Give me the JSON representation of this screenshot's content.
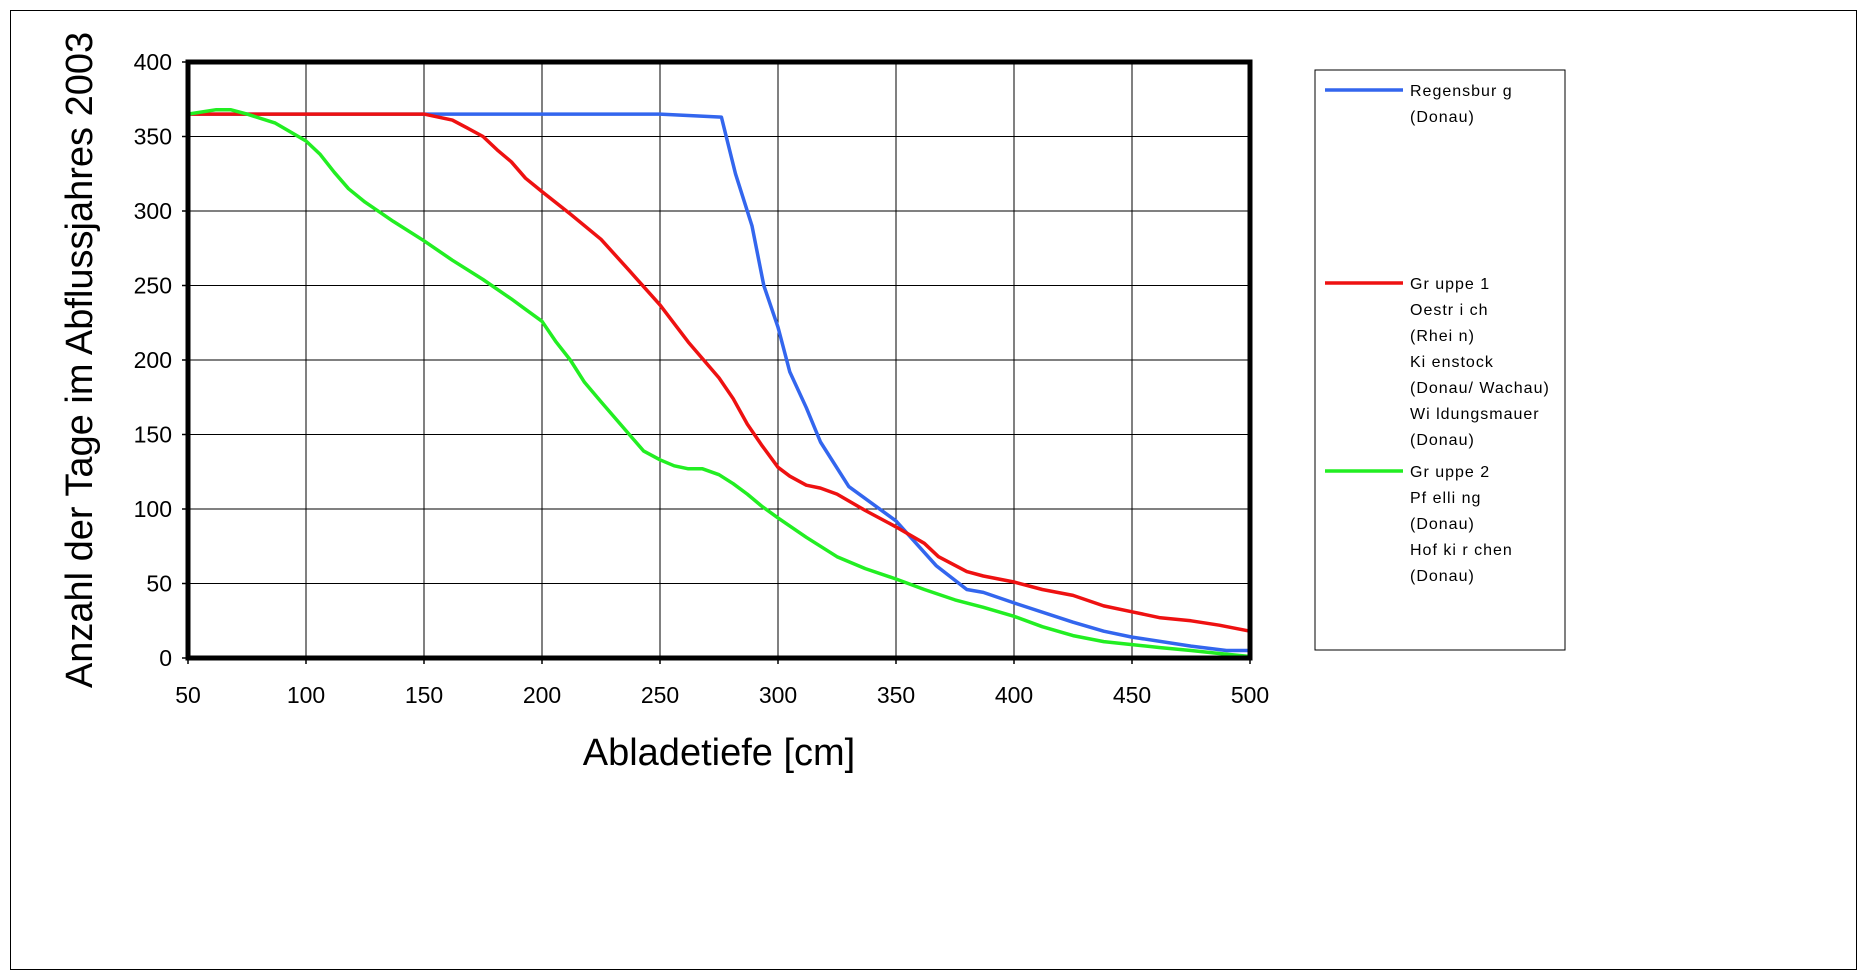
{
  "chart_data": {
    "type": "line",
    "title": "",
    "xlabel": "Abladetiefe [cm]",
    "ylabel": "Anzahl der Tage im Abflussjahres 2003",
    "xlim": [
      50,
      500
    ],
    "ylim": [
      0,
      400
    ],
    "xticks": [
      50,
      100,
      150,
      200,
      250,
      300,
      350,
      400,
      450,
      500
    ],
    "yticks": [
      0,
      50,
      100,
      150,
      200,
      250,
      300,
      350,
      400
    ],
    "grid": true,
    "legend_position": "right",
    "series": [
      {
        "name": "Regensburg (Donau)",
        "legend_lines": [
          "Regensbur g",
          "(Donau)"
        ],
        "color": "#3366ee",
        "x": [
          50,
          100,
          150,
          200,
          250,
          276,
          282,
          289,
          294,
          300,
          305,
          312,
          318,
          330,
          350,
          367,
          380,
          387,
          400,
          425,
          438,
          450,
          475,
          490,
          500
        ],
        "y": [
          365,
          365,
          365,
          365,
          365,
          363,
          325,
          290,
          250,
          222,
          192,
          168,
          145,
          115,
          92,
          62,
          46,
          44,
          37,
          24,
          18,
          14,
          8,
          5,
          5
        ]
      },
      {
        "name": "Gruppe 1",
        "legend_lines": [
          "Gr uppe 1",
          "Oestr i ch",
          "(Rhei n)",
          "Ki enstock",
          "(Donau/ Wachau)",
          "Wi ldungsmauer",
          "(Donau)"
        ],
        "color": "#ee1111",
        "x": [
          50,
          100,
          150,
          162,
          168,
          175,
          181,
          187,
          193,
          200,
          212,
          225,
          237,
          250,
          262,
          275,
          281,
          287,
          293,
          300,
          305,
          312,
          318,
          325,
          337,
          350,
          362,
          368,
          380,
          387,
          400,
          412,
          425,
          438,
          450,
          462,
          475,
          487,
          500
        ],
        "y": [
          365,
          365,
          365,
          361,
          356,
          350,
          341,
          333,
          322,
          313,
          298,
          281,
          260,
          237,
          212,
          188,
          174,
          157,
          143,
          128,
          122,
          116,
          114,
          110,
          99,
          88,
          77,
          68,
          58,
          55,
          51,
          46,
          42,
          35,
          31,
          27,
          25,
          22,
          18
        ]
      },
      {
        "name": "Gruppe 2",
        "legend_lines": [
          "Gr uppe 2",
          "Pf elli ng",
          "(Donau)",
          "Hof ki r chen",
          "(Donau)"
        ],
        "color": "#22ee22",
        "x": [
          50,
          62,
          68,
          75,
          87,
          100,
          106,
          112,
          118,
          125,
          137,
          150,
          162,
          175,
          187,
          193,
          200,
          206,
          212,
          218,
          225,
          237,
          243,
          250,
          256,
          262,
          268,
          275,
          281,
          287,
          293,
          300,
          312,
          325,
          337,
          350,
          362,
          375,
          387,
          400,
          412,
          425,
          438,
          450,
          462,
          475,
          487,
          500
        ],
        "y": [
          365,
          368,
          368,
          365,
          359,
          347,
          338,
          326,
          315,
          306,
          293,
          280,
          267,
          254,
          241,
          234,
          226,
          212,
          200,
          185,
          172,
          150,
          139,
          133,
          129,
          127,
          127,
          123,
          117,
          110,
          102,
          94,
          81,
          68,
          60,
          53,
          46,
          39,
          34,
          28,
          21,
          15,
          11,
          9,
          7,
          5,
          3,
          1
        ]
      }
    ]
  }
}
